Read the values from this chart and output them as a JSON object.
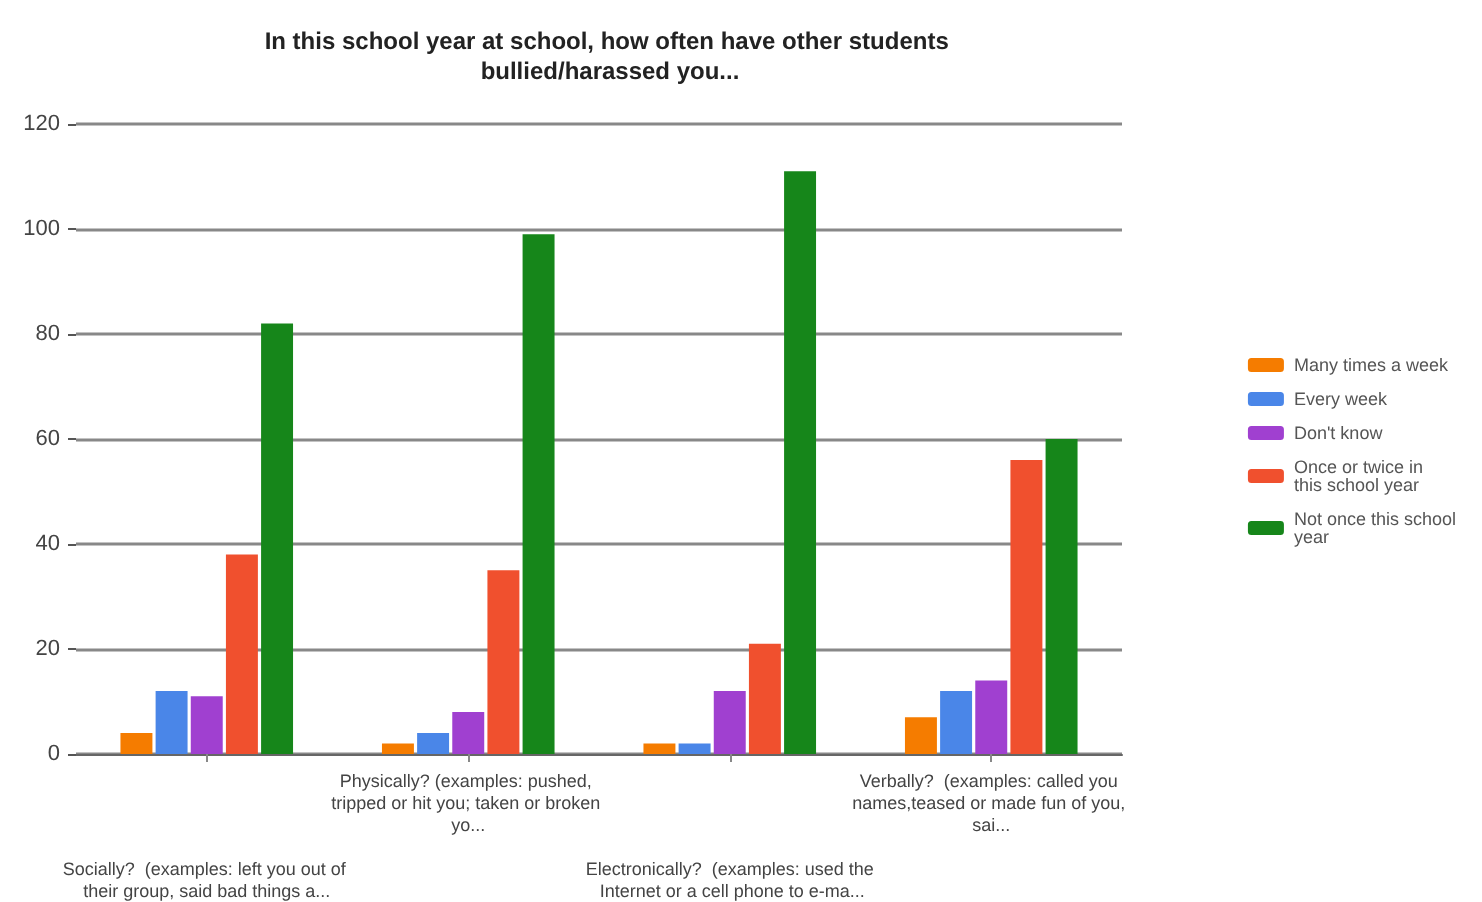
{
  "chart_data": {
    "type": "bar",
    "title": "In this school year at school, how often have other students bullied/harassed you...",
    "categories": [
      "Socially?  (examples: left you out of their group, said bad things a...",
      "Physically? (examples: pushed, tripped or hit you; taken or broken yo...",
      "Electronically?  (examples: used the Internet or a cell phone to e-ma...",
      "Verbally?  (examples: called you names,teased or made fun of you, sai..."
    ],
    "series": [
      {
        "name": "Many times a week",
        "color": "#f57c00",
        "values": [
          4,
          2,
          2,
          7
        ]
      },
      {
        "name": "Every week",
        "color": "#4a86e8",
        "values": [
          12,
          4,
          2,
          12
        ]
      },
      {
        "name": "Don't know",
        "color": "#a040d0",
        "values": [
          11,
          8,
          12,
          14
        ]
      },
      {
        "name": "Once or twice in this school year",
        "color": "#f0502e",
        "values": [
          38,
          35,
          21,
          56
        ]
      },
      {
        "name": "Not once this school year",
        "color": "#16861a",
        "values": [
          82,
          99,
          111,
          60
        ]
      }
    ],
    "ylim": [
      0,
      120
    ],
    "yticks": [
      0,
      20,
      40,
      60,
      80,
      100,
      120
    ],
    "grid": "y",
    "legend": "right"
  }
}
